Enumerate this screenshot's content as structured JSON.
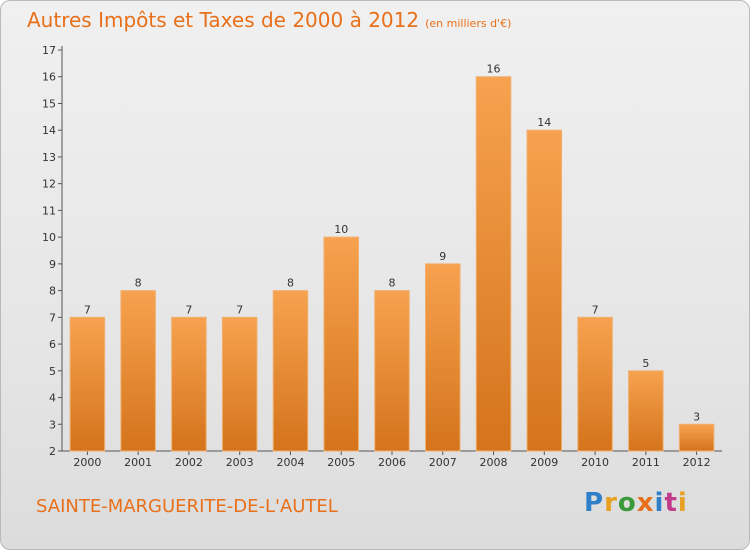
{
  "title": "Autres Impôts et Taxes de 2000 à 2012",
  "subtitle": "(en milliers d'€)",
  "place": "SAINTE-MARGUERITE-DE-L'AUTEL",
  "logo": {
    "text": "Proxiti",
    "colors": [
      "#2f7fc8",
      "#e8a020",
      "#3a9a3a",
      "#e8701a",
      "#2f7fc8",
      "#c23a8a",
      "#e8a020"
    ]
  },
  "colors": {
    "bar_top": "#f7a24f",
    "bar_bottom": "#d4741c",
    "accent": "#e8701a"
  },
  "chart_data": {
    "type": "bar",
    "categories": [
      "2000",
      "2001",
      "2002",
      "2003",
      "2004",
      "2005",
      "2006",
      "2007",
      "2008",
      "2009",
      "2010",
      "2011",
      "2012"
    ],
    "values": [
      7,
      8,
      7,
      7,
      8,
      10,
      8,
      9,
      16,
      14,
      7,
      5,
      3
    ],
    "ylim": [
      2,
      17
    ],
    "yticks": [
      2,
      3,
      4,
      5,
      6,
      7,
      8,
      9,
      10,
      11,
      12,
      13,
      14,
      15,
      16,
      17
    ],
    "data_labels": true,
    "grid": false
  }
}
